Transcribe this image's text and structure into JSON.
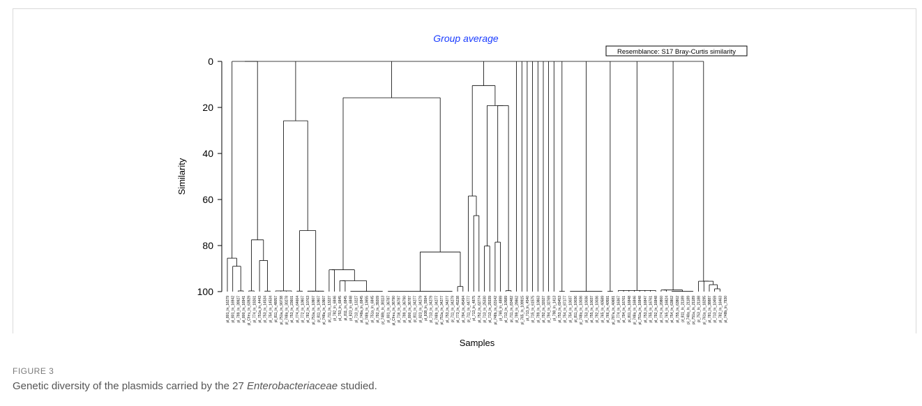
{
  "figure": {
    "label": "FIGURE 3",
    "caption_before": "Genetic diversity of the plasmids carried by the 27 ",
    "caption_italic": "Enterobacteriaceae",
    "caption_after": " studied."
  },
  "chart_data": {
    "type": "dendrogram",
    "title": "Group average",
    "legend_text": "Resemblance: S17 Bray-Curtis similarity",
    "xlabel": "Samples",
    "ylabel": "Similarity",
    "ylim": [
      0,
      100
    ],
    "yticks": [
      0,
      20,
      40,
      60,
      80,
      100
    ],
    "title_color": "#1a3cff",
    "line_color": "#000000",
    "leaves": [
      "pl_801_In_16279",
      "pl_801_In_16942",
      "pl_799_In_39927",
      "pl_800_In_16941",
      "pl_Cfreu_In_63929",
      "pl_774_In_19261",
      "pl_751a_In_4443",
      "pl_753_In_14534",
      "pl_754_In_14534",
      "pl_811_In_48057",
      "pl_751a_In_90738",
      "pl_748a_In_30278",
      "pl_753_In_23601",
      "pl_774_In_64664",
      "pl_772_In_10907",
      "pl_782_In_10763",
      "pl_751a_In_10907",
      "pl_811_In_10907",
      "pl_748a_In_10907",
      "pl_711_In_13227",
      "pl_782_In_6846",
      "pl_753_In_6845",
      "pl_811_In_6845",
      "pl_823_In_6848",
      "pl_713_In_13227",
      "pl_748a_In_6845",
      "pl_748b_In_13655",
      "pl_751a_In_6845",
      "pl_792_In_39209",
      "pl_748b_In_38113",
      "pl_801_In_36787",
      "pl_Cfreu_In_36790",
      "pl_716_In_36787",
      "pl_799_In_36790",
      "pl_800_In_36787",
      "pl_811_In_34277",
      "pl_823_In_34279",
      "pl_838_In_5594",
      "pl_713_In_34279",
      "pl_748b_In_34277",
      "pl_751a_In_34277",
      "pl_753_In_34277",
      "pl_711_In_34279",
      "pl_773_In_45238",
      "pl_794_In_45494",
      "pl_711_In_44777",
      "pl_713_In_4875",
      "pl_752_In_62774",
      "pl_713_In_25330",
      "pl_713_In_29339",
      "pl_748b_In_63142",
      "pl_765_In_4899",
      "pl_713_In_10589",
      "pl_711_In_83482",
      "pl_799_In_29862",
      "pl_765_In_109915",
      "pl_713_In_4540",
      "pl_715_In_61575",
      "pl_799_In_10863",
      "pl_792_In_32027",
      "pl_794_In_32769",
      "pl_798_In_1413",
      "pl_753_In_69453",
      "pl_754_In_87177",
      "pl_754_In_10037",
      "pl_811_In_10036",
      "pl_748a_In_10036",
      "pl_753_In_10036",
      "pl_755_In_10037",
      "pl_792_In_10036",
      "pl_765_In_40589",
      "pl_766_In_40591",
      "pl_787a_In_40681",
      "pl_774_In_16367",
      "pl_794_In_16761",
      "pl_811_In_16848",
      "pl_748a_In_16846",
      "pl_751a_In_16848",
      "pl_753_In_16847",
      "pl_755_In_16761",
      "pl_792_In_16848",
      "pl_774_In_20860",
      "pl_765_In_16824",
      "pl_754_In_63802",
      "pl_755_In_63802",
      "pl_811_In_21189",
      "pl_748a_In_21189",
      "pl_751a_In_21189",
      "pl_753_In_21188",
      "pl_761a_In_18295",
      "pl_781_In_38887",
      "pl_713_In_10459",
      "pl_782_In_16463",
      "pl_748b_In_7930"
    ]
  }
}
